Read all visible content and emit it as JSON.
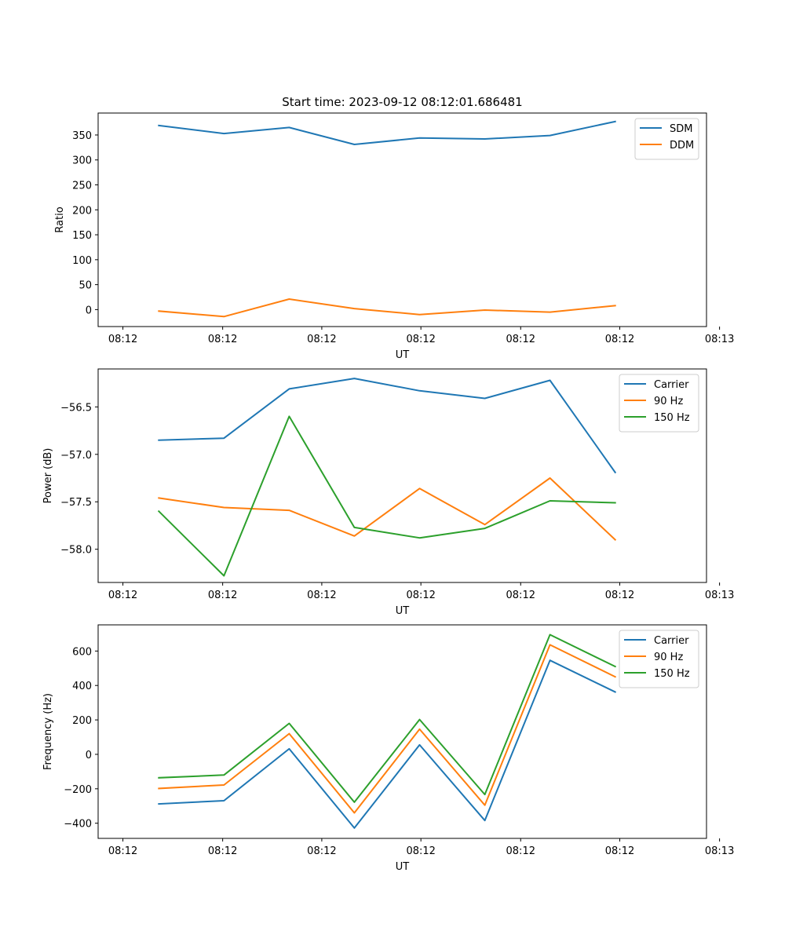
{
  "figure_title": "Start time: 2023-09-12 08:12:01.686481",
  "chart_data": [
    {
      "type": "line",
      "title": "Start time: 2023-09-12 08:12:01.686481",
      "xlabel": "UT",
      "ylabel": "Ratio",
      "x": [
        1,
        2,
        3,
        4,
        5,
        6,
        7,
        8
      ],
      "xlim": [
        0.07,
        9.4
      ],
      "xticks": [
        0.45,
        1.98,
        3.5,
        5.02,
        6.55,
        8.07,
        9.6
      ],
      "xtick_labels": [
        "08:12",
        "08:12",
        "08:12",
        "08:12",
        "08:12",
        "08:12",
        "08:13"
      ],
      "ylim": [
        -34,
        394
      ],
      "yticks": [
        0,
        50,
        100,
        150,
        200,
        250,
        300,
        350
      ],
      "ytick_labels": [
        "0",
        "50",
        "100",
        "150",
        "200",
        "250",
        "300",
        "350"
      ],
      "legend_position": "top-right",
      "series": [
        {
          "name": "SDM",
          "color": "#1f77b4",
          "values": [
            369,
            353,
            365,
            331,
            344,
            342,
            349,
            377
          ]
        },
        {
          "name": "DDM",
          "color": "#ff7f0e",
          "values": [
            -3,
            -14,
            21,
            2,
            -10,
            -1,
            -5,
            8
          ]
        }
      ]
    },
    {
      "type": "line",
      "title": "",
      "xlabel": "UT",
      "ylabel": "Power (dB)",
      "x": [
        1,
        2,
        3,
        4,
        5,
        6,
        7,
        8
      ],
      "xlim": [
        0.07,
        9.4
      ],
      "xticks": [
        0.45,
        1.98,
        3.5,
        5.02,
        6.55,
        8.07,
        9.6
      ],
      "xtick_labels": [
        "08:12",
        "08:12",
        "08:12",
        "08:12",
        "08:12",
        "08:12",
        "08:13"
      ],
      "ylim": [
        -58.35,
        -56.1
      ],
      "yticks": [
        -58.0,
        -57.5,
        -57.0,
        -56.5
      ],
      "ytick_labels": [
        "−58.0",
        "−57.5",
        "−57.0",
        "−56.5"
      ],
      "legend_position": "top-right",
      "series": [
        {
          "name": "Carrier",
          "color": "#1f77b4",
          "values": [
            -56.85,
            -56.83,
            -56.31,
            -56.2,
            -56.33,
            -56.41,
            -56.22,
            -57.19
          ]
        },
        {
          "name": "90 Hz",
          "color": "#ff7f0e",
          "values": [
            -57.46,
            -57.56,
            -57.59,
            -57.86,
            -57.36,
            -57.74,
            -57.25,
            -57.9
          ]
        },
        {
          "name": "150 Hz",
          "color": "#2ca02c",
          "values": [
            -57.6,
            -58.28,
            -56.6,
            -57.77,
            -57.88,
            -57.78,
            -57.49,
            -57.51
          ]
        }
      ]
    },
    {
      "type": "line",
      "title": "",
      "xlabel": "UT",
      "ylabel": "Frequency (Hz)",
      "x": [
        1,
        2,
        3,
        4,
        5,
        6,
        7,
        8
      ],
      "xlim": [
        0.07,
        9.4
      ],
      "xticks": [
        0.45,
        1.98,
        3.5,
        5.02,
        6.55,
        8.07,
        9.6
      ],
      "xtick_labels": [
        "08:12",
        "08:12",
        "08:12",
        "08:12",
        "08:12",
        "08:12",
        "08:13"
      ],
      "ylim": [
        -488,
        752
      ],
      "yticks": [
        -400,
        -200,
        0,
        200,
        400,
        600
      ],
      "ytick_labels": [
        "−400",
        "−200",
        "0",
        "200",
        "400",
        "600"
      ],
      "legend_position": "top-right",
      "series": [
        {
          "name": "Carrier",
          "color": "#1f77b4",
          "values": [
            -288,
            -269,
            32,
            -428,
            55,
            -384,
            546,
            362
          ]
        },
        {
          "name": "90 Hz",
          "color": "#ff7f0e",
          "values": [
            -198,
            -178,
            120,
            -340,
            146,
            -295,
            636,
            450
          ]
        },
        {
          "name": "150 Hz",
          "color": "#2ca02c",
          "values": [
            -136,
            -120,
            180,
            -278,
            202,
            -233,
            695,
            510
          ]
        }
      ]
    }
  ]
}
